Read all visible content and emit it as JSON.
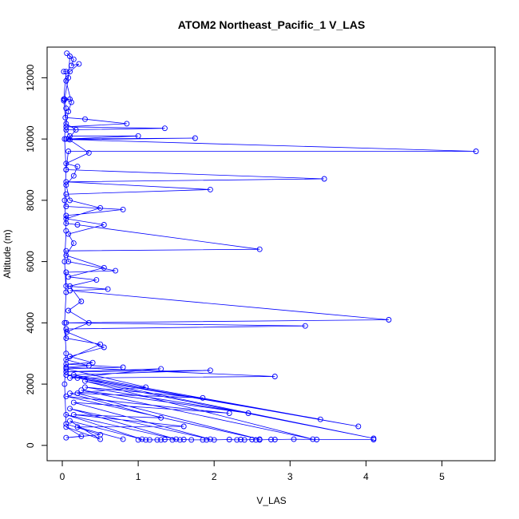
{
  "chart_data": {
    "type": "line",
    "title": "ATOM2 Northeast_Pacific_1 V_LAS",
    "xlabel": "V_LAS",
    "ylabel": "Altitude (m)",
    "xlim": [
      0,
      5.7
    ],
    "ylim": [
      0,
      13000
    ],
    "xticks": [
      "0",
      "1",
      "2",
      "3",
      "4",
      "5"
    ],
    "yticks": [
      "0",
      "2000",
      "4000",
      "6000",
      "8000",
      "10000",
      "12000"
    ],
    "colors": {
      "series": "#0000ff",
      "axis": "#000000"
    },
    "series": [
      {
        "name": "",
        "points": [
          [
            0.02,
            12200
          ],
          [
            0.05,
            12200
          ],
          [
            0.02,
            11300
          ],
          [
            0.1,
            11300
          ],
          [
            0.02,
            11250
          ],
          [
            0.04,
            10700
          ],
          [
            0.3,
            10650
          ],
          [
            0.85,
            10500
          ],
          [
            0.05,
            10400
          ],
          [
            1.35,
            10350
          ],
          [
            0.05,
            10300
          ],
          [
            0.1,
            10100
          ],
          [
            1.0,
            10100
          ],
          [
            0.05,
            10000
          ],
          [
            1.75,
            10030
          ],
          [
            0.1,
            9980
          ],
          [
            5.45,
            9600
          ],
          [
            0.08,
            9600
          ],
          [
            0.05,
            9000
          ],
          [
            3.45,
            8700
          ],
          [
            0.05,
            8600
          ],
          [
            1.95,
            8350
          ],
          [
            0.05,
            8200
          ],
          [
            0.05,
            7800
          ],
          [
            0.8,
            7700
          ],
          [
            0.05,
            7500
          ],
          [
            0.05,
            7250
          ],
          [
            0.2,
            7200
          ],
          [
            2.6,
            6400
          ],
          [
            0.05,
            6350
          ],
          [
            0.08,
            6000
          ],
          [
            0.7,
            5700
          ],
          [
            0.05,
            5650
          ],
          [
            0.05,
            5200
          ],
          [
            0.6,
            5100
          ],
          [
            0.1,
            5050
          ],
          [
            4.3,
            4100
          ],
          [
            0.05,
            4000
          ],
          [
            3.2,
            3900
          ],
          [
            0.05,
            3800
          ],
          [
            0.05,
            3500
          ],
          [
            0.5,
            3300
          ],
          [
            0.05,
            2800
          ],
          [
            0.35,
            2600
          ],
          [
            0.05,
            2550
          ],
          [
            2.8,
            2250
          ],
          [
            0.1,
            2200
          ],
          [
            1.3,
            2500
          ],
          [
            0.05,
            2400
          ],
          [
            1.95,
            2450
          ],
          [
            0.05,
            2300
          ],
          [
            3.9,
            620
          ],
          [
            0.15,
            2300
          ],
          [
            3.4,
            850
          ],
          [
            0.2,
            2200
          ],
          [
            4.1,
            230
          ],
          [
            0.3,
            2100
          ],
          [
            3.3,
            200
          ],
          [
            0.25,
            1800
          ],
          [
            2.45,
            1050
          ],
          [
            0.3,
            1900
          ],
          [
            1.85,
            1550
          ],
          [
            0.2,
            1700
          ],
          [
            2.6,
            200
          ],
          [
            0.05,
            1600
          ],
          [
            2.2,
            1050
          ],
          [
            0.15,
            1400
          ],
          [
            1.95,
            200
          ],
          [
            0.1,
            1200
          ],
          [
            1.5,
            200
          ],
          [
            0.05,
            1000
          ],
          [
            1.05,
            200
          ],
          [
            0.1,
            800
          ],
          [
            0.5,
            200
          ],
          [
            0.05,
            600
          ],
          [
            0.25,
            300
          ],
          [
            0.05,
            250
          ],
          [
            0.5,
            350
          ],
          [
            0.05,
            700
          ],
          [
            0.03,
            2000
          ],
          [
            0.05,
            3000
          ],
          [
            0.03,
            4000
          ],
          [
            0.05,
            5000
          ],
          [
            0.03,
            6000
          ],
          [
            0.05,
            7000
          ],
          [
            0.03,
            8000
          ],
          [
            0.05,
            9000
          ],
          [
            0.03,
            10000
          ],
          [
            0.05,
            11000
          ],
          [
            0.03,
            11300
          ],
          [
            0.08,
            12000
          ],
          [
            0.1,
            12700
          ],
          [
            0.06,
            12800
          ],
          [
            0.15,
            12600
          ],
          [
            0.12,
            12400
          ],
          [
            0.22,
            12450
          ],
          [
            0.1,
            12200
          ],
          [
            0.05,
            11900
          ],
          [
            0.12,
            11200
          ],
          [
            0.08,
            10900
          ],
          [
            0.05,
            10500
          ],
          [
            0.18,
            10300
          ],
          [
            0.08,
            10000
          ],
          [
            0.35,
            9550
          ],
          [
            0.05,
            9200
          ],
          [
            0.2,
            9100
          ],
          [
            0.15,
            8800
          ],
          [
            0.05,
            8500
          ],
          [
            0.1,
            8000
          ],
          [
            0.5,
            7750
          ],
          [
            0.05,
            7400
          ],
          [
            0.55,
            7200
          ],
          [
            0.08,
            6900
          ],
          [
            0.15,
            6600
          ],
          [
            0.05,
            6200
          ],
          [
            0.55,
            5800
          ],
          [
            0.08,
            5500
          ],
          [
            0.45,
            5400
          ],
          [
            0.1,
            5200
          ],
          [
            0.25,
            4700
          ],
          [
            0.08,
            4400
          ],
          [
            0.35,
            4000
          ],
          [
            0.06,
            3700
          ],
          [
            0.55,
            3200
          ],
          [
            0.1,
            2900
          ],
          [
            0.4,
            2700
          ],
          [
            0.05,
            2650
          ],
          [
            0.8,
            2550
          ],
          [
            0.05,
            2500
          ],
          [
            1.1,
            1900
          ],
          [
            0.1,
            1700
          ],
          [
            1.3,
            900
          ],
          [
            0.15,
            1000
          ],
          [
            1.6,
            620
          ],
          [
            0.2,
            600
          ],
          [
            0.8,
            200
          ]
        ]
      },
      {
        "name": "",
        "points": [
          [
            1.0,
            180
          ],
          [
            1.1,
            180
          ],
          [
            1.15,
            180
          ],
          [
            1.25,
            180
          ],
          [
            1.3,
            180
          ],
          [
            1.35,
            190
          ],
          [
            1.45,
            180
          ],
          [
            1.55,
            180
          ],
          [
            1.6,
            190
          ],
          [
            1.7,
            180
          ],
          [
            1.85,
            180
          ],
          [
            1.9,
            180
          ],
          [
            2.0,
            180
          ],
          [
            2.2,
            190
          ],
          [
            2.3,
            180
          ],
          [
            2.35,
            190
          ],
          [
            2.4,
            180
          ],
          [
            2.5,
            190
          ],
          [
            2.55,
            180
          ],
          [
            2.6,
            180
          ],
          [
            2.75,
            190
          ],
          [
            2.8,
            190
          ],
          [
            3.05,
            200
          ],
          [
            3.35,
            190
          ],
          [
            4.1,
            190
          ]
        ]
      }
    ]
  }
}
